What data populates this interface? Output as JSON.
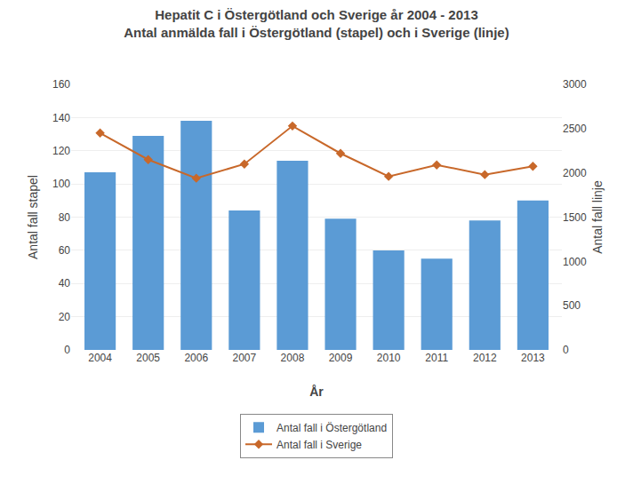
{
  "chart_data": {
    "type": "bar",
    "title": "Hepatit C i Östergötland och Sverige år 2004 - 2013",
    "subtitle": "Antal anmälda fall i Östergötland (stapel) och i Sverige (linje)",
    "xlabel": "År",
    "ylabel": "Antal fall stapel",
    "y2label": "Antal fall linje",
    "categories": [
      "2004",
      "2005",
      "2006",
      "2007",
      "2008",
      "2009",
      "2010",
      "2011",
      "2012",
      "2013"
    ],
    "series": [
      {
        "name": "Antal fall i Östergötland",
        "type": "bar",
        "color": "#5b9bd5",
        "values": [
          107,
          129,
          138,
          84,
          114,
          79,
          60,
          55,
          78,
          90
        ]
      },
      {
        "name": "Antal fall i Sverige",
        "type": "line",
        "color": "#c8682a",
        "marker": "diamond",
        "axis": "y2",
        "values": [
          2450,
          2150,
          1940,
          2100,
          2530,
          2220,
          1960,
          2090,
          1980,
          2075
        ]
      }
    ],
    "ylim": [
      0,
      160
    ],
    "yticks": [
      0,
      20,
      40,
      60,
      80,
      100,
      120,
      140,
      160
    ],
    "y2lim": [
      0,
      3000
    ],
    "y2ticks": [
      0,
      500,
      1000,
      1500,
      2000,
      2500,
      3000
    ],
    "grid": true,
    "legend": "bottom"
  }
}
